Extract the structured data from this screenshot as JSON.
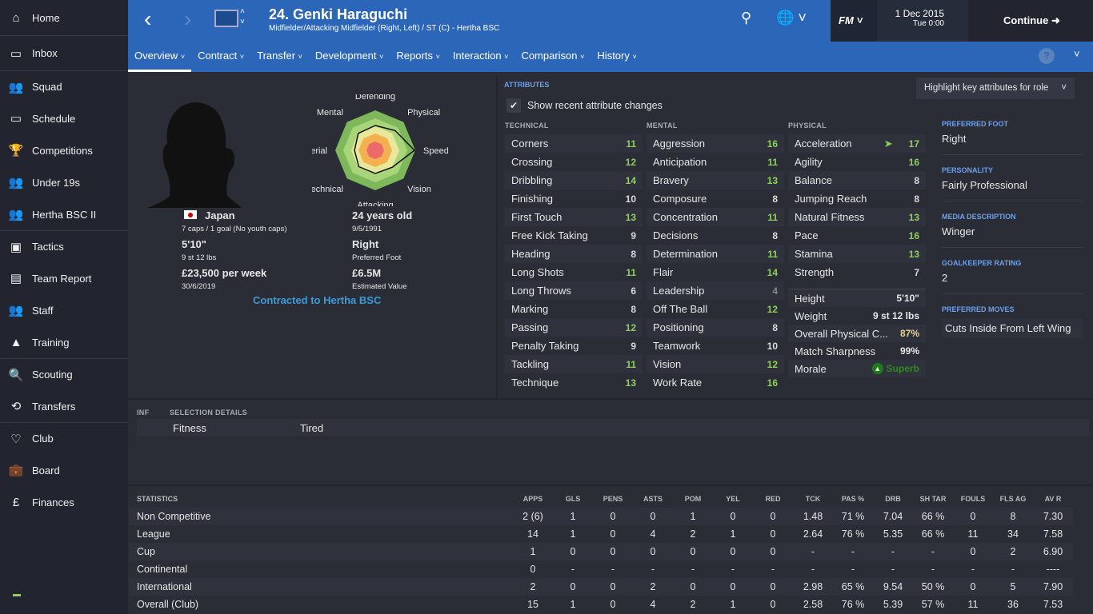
{
  "sidebar": {
    "items": [
      {
        "label": "Home",
        "icon": "home-icon",
        "glyph": "⌂"
      },
      {
        "label": "Inbox",
        "icon": "inbox-icon",
        "glyph": "▭"
      },
      {
        "label": "Squad",
        "icon": "squad-icon",
        "glyph": "👥"
      },
      {
        "label": "Schedule",
        "icon": "schedule-icon",
        "glyph": "▭"
      },
      {
        "label": "Competitions",
        "icon": "trophy-icon",
        "glyph": "🏆"
      },
      {
        "label": "Under 19s",
        "icon": "under19-icon",
        "glyph": "👥"
      },
      {
        "label": "Hertha BSC II",
        "icon": "reserve-team-icon",
        "glyph": "👥"
      },
      {
        "label": "Tactics",
        "icon": "tactics-icon",
        "glyph": "▣"
      },
      {
        "label": "Team Report",
        "icon": "team-report-icon",
        "glyph": "▤"
      },
      {
        "label": "Staff",
        "icon": "staff-icon",
        "glyph": "👥"
      },
      {
        "label": "Training",
        "icon": "training-cone-icon",
        "glyph": "▲"
      },
      {
        "label": "Scouting",
        "icon": "search-icon",
        "glyph": "🔍"
      },
      {
        "label": "Transfers",
        "icon": "transfers-icon",
        "glyph": "⟲"
      },
      {
        "label": "Club",
        "icon": "club-shield-icon",
        "glyph": "♡"
      },
      {
        "label": "Board",
        "icon": "briefcase-icon",
        "glyph": "💼"
      },
      {
        "label": "Finances",
        "icon": "pound-icon",
        "glyph": "£"
      }
    ]
  },
  "header": {
    "title": "24. Genki Haraguchi",
    "subtitle": "Midfielder/Attacking Midfielder (Right, Left) / ST (C) - Hertha BSC",
    "date": "1 Dec 2015",
    "time": "Tue 0:00",
    "continue": "Continue",
    "fm": "FM",
    "tabs": [
      "Overview",
      "Contract",
      "Transfer",
      "Development",
      "Reports",
      "Interaction",
      "Comparison",
      "History"
    ]
  },
  "profile": {
    "nation": "Japan",
    "caps": "7 caps / 1 goal (No youth caps)",
    "height": "5'10\"",
    "weight": "9 st 12 lbs",
    "wage": "£23,500 per week",
    "contract_end": "30/6/2019",
    "age": "24 years old",
    "dob": "9/5/1991",
    "foot": "Right",
    "foot_label": "Preferred Foot",
    "value": "£6.5M",
    "value_label": "Estimated Value",
    "contracted": "Contracted to Hertha BSC",
    "radar": {
      "labels": [
        "Defending",
        "Physical",
        "Speed",
        "Vision",
        "Attacking",
        "Technical",
        "Aerial",
        "Mental"
      ],
      "values": [
        0.62,
        0.7,
        0.98,
        0.6,
        0.58,
        0.58,
        0.52,
        0.6
      ]
    }
  },
  "attributes": {
    "title": "ATTRIBUTES",
    "highlight": "Highlight key attributes for role",
    "show_changes": "Show recent attribute changes",
    "show_changes_checked": true,
    "technical_title": "TECHNICAL",
    "mental_title": "MENTAL",
    "physical_title": "PHYSICAL",
    "technical": [
      [
        "Corners",
        11
      ],
      [
        "Crossing",
        12
      ],
      [
        "Dribbling",
        14
      ],
      [
        "Finishing",
        10
      ],
      [
        "First Touch",
        13
      ],
      [
        "Free Kick Taking",
        9
      ],
      [
        "Heading",
        8
      ],
      [
        "Long Shots",
        11
      ],
      [
        "Long Throws",
        6
      ],
      [
        "Marking",
        8
      ],
      [
        "Passing",
        12
      ],
      [
        "Penalty Taking",
        9
      ],
      [
        "Tackling",
        11
      ],
      [
        "Technique",
        13
      ]
    ],
    "mental": [
      [
        "Aggression",
        16
      ],
      [
        "Anticipation",
        11
      ],
      [
        "Bravery",
        13
      ],
      [
        "Composure",
        8
      ],
      [
        "Concentration",
        11
      ],
      [
        "Decisions",
        8
      ],
      [
        "Determination",
        11
      ],
      [
        "Flair",
        14
      ],
      [
        "Leadership",
        4
      ],
      [
        "Off The Ball",
        12
      ],
      [
        "Positioning",
        8
      ],
      [
        "Teamwork",
        10
      ],
      [
        "Vision",
        12
      ],
      [
        "Work Rate",
        16
      ]
    ],
    "physical": [
      [
        "Acceleration",
        17
      ],
      [
        "Agility",
        16
      ],
      [
        "Balance",
        8
      ],
      [
        "Jumping Reach",
        8
      ],
      [
        "Natural Fitness",
        13
      ],
      [
        "Pace",
        16
      ],
      [
        "Stamina",
        13
      ],
      [
        "Strength",
        7
      ]
    ],
    "extra": [
      [
        "Height",
        "5'10\""
      ],
      [
        "Weight",
        "9 st 12 lbs"
      ],
      [
        "Overall Physical C...",
        "87%"
      ],
      [
        "Match Sharpness",
        "99%"
      ],
      [
        "Morale",
        "Superb"
      ]
    ]
  },
  "side_info": {
    "foot_title": "PREFERRED FOOT",
    "foot": "Right",
    "personality_title": "PERSONALITY",
    "personality": "Fairly Professional",
    "media_title": "MEDIA DESCRIPTION",
    "media": "Winger",
    "gk_title": "GOALKEEPER RATING",
    "gk": "2",
    "moves_title": "PREFERRED MOVES",
    "moves": "Cuts Inside From Left Wing"
  },
  "selection": {
    "inf": "INF",
    "title": "SELECTION DETAILS",
    "label": "Fitness",
    "value": "Tired"
  },
  "statistics": {
    "columns": [
      "STATISTICS",
      "APPS",
      "GLS",
      "PENS",
      "ASTS",
      "POM",
      "YEL",
      "RED",
      "TCK",
      "PAS %",
      "DRB",
      "SH TAR",
      "FOULS",
      "FLS AG",
      "AV R"
    ],
    "rows": [
      [
        "Non Competitive",
        "2 (6)",
        "1",
        "0",
        "0",
        "1",
        "0",
        "0",
        "1.48",
        "71 %",
        "7.04",
        "66 %",
        "0",
        "8",
        "7.30"
      ],
      [
        "League",
        "14",
        "1",
        "0",
        "4",
        "2",
        "1",
        "0",
        "2.64",
        "76 %",
        "5.35",
        "66 %",
        "11",
        "34",
        "7.58"
      ],
      [
        "Cup",
        "1",
        "0",
        "0",
        "0",
        "0",
        "0",
        "0",
        "-",
        "-",
        "-",
        "-",
        "0",
        "2",
        "6.90"
      ],
      [
        "Continental",
        "0",
        "-",
        "-",
        "-",
        "-",
        "-",
        "-",
        "-",
        "-",
        "-",
        "-",
        "-",
        "-",
        "----"
      ],
      [
        "International",
        "2",
        "0",
        "0",
        "2",
        "0",
        "0",
        "0",
        "2.98",
        "65 %",
        "9.54",
        "50 %",
        "0",
        "5",
        "7.90"
      ],
      [
        "Overall (Club)",
        "15",
        "1",
        "0",
        "4",
        "2",
        "1",
        "0",
        "2.58",
        "76 %",
        "5.39",
        "57 %",
        "11",
        "36",
        "7.53"
      ]
    ]
  },
  "colors": {
    "header": "#2c66b8",
    "green": "#8fd05a",
    "text": "#e6e6e6"
  }
}
